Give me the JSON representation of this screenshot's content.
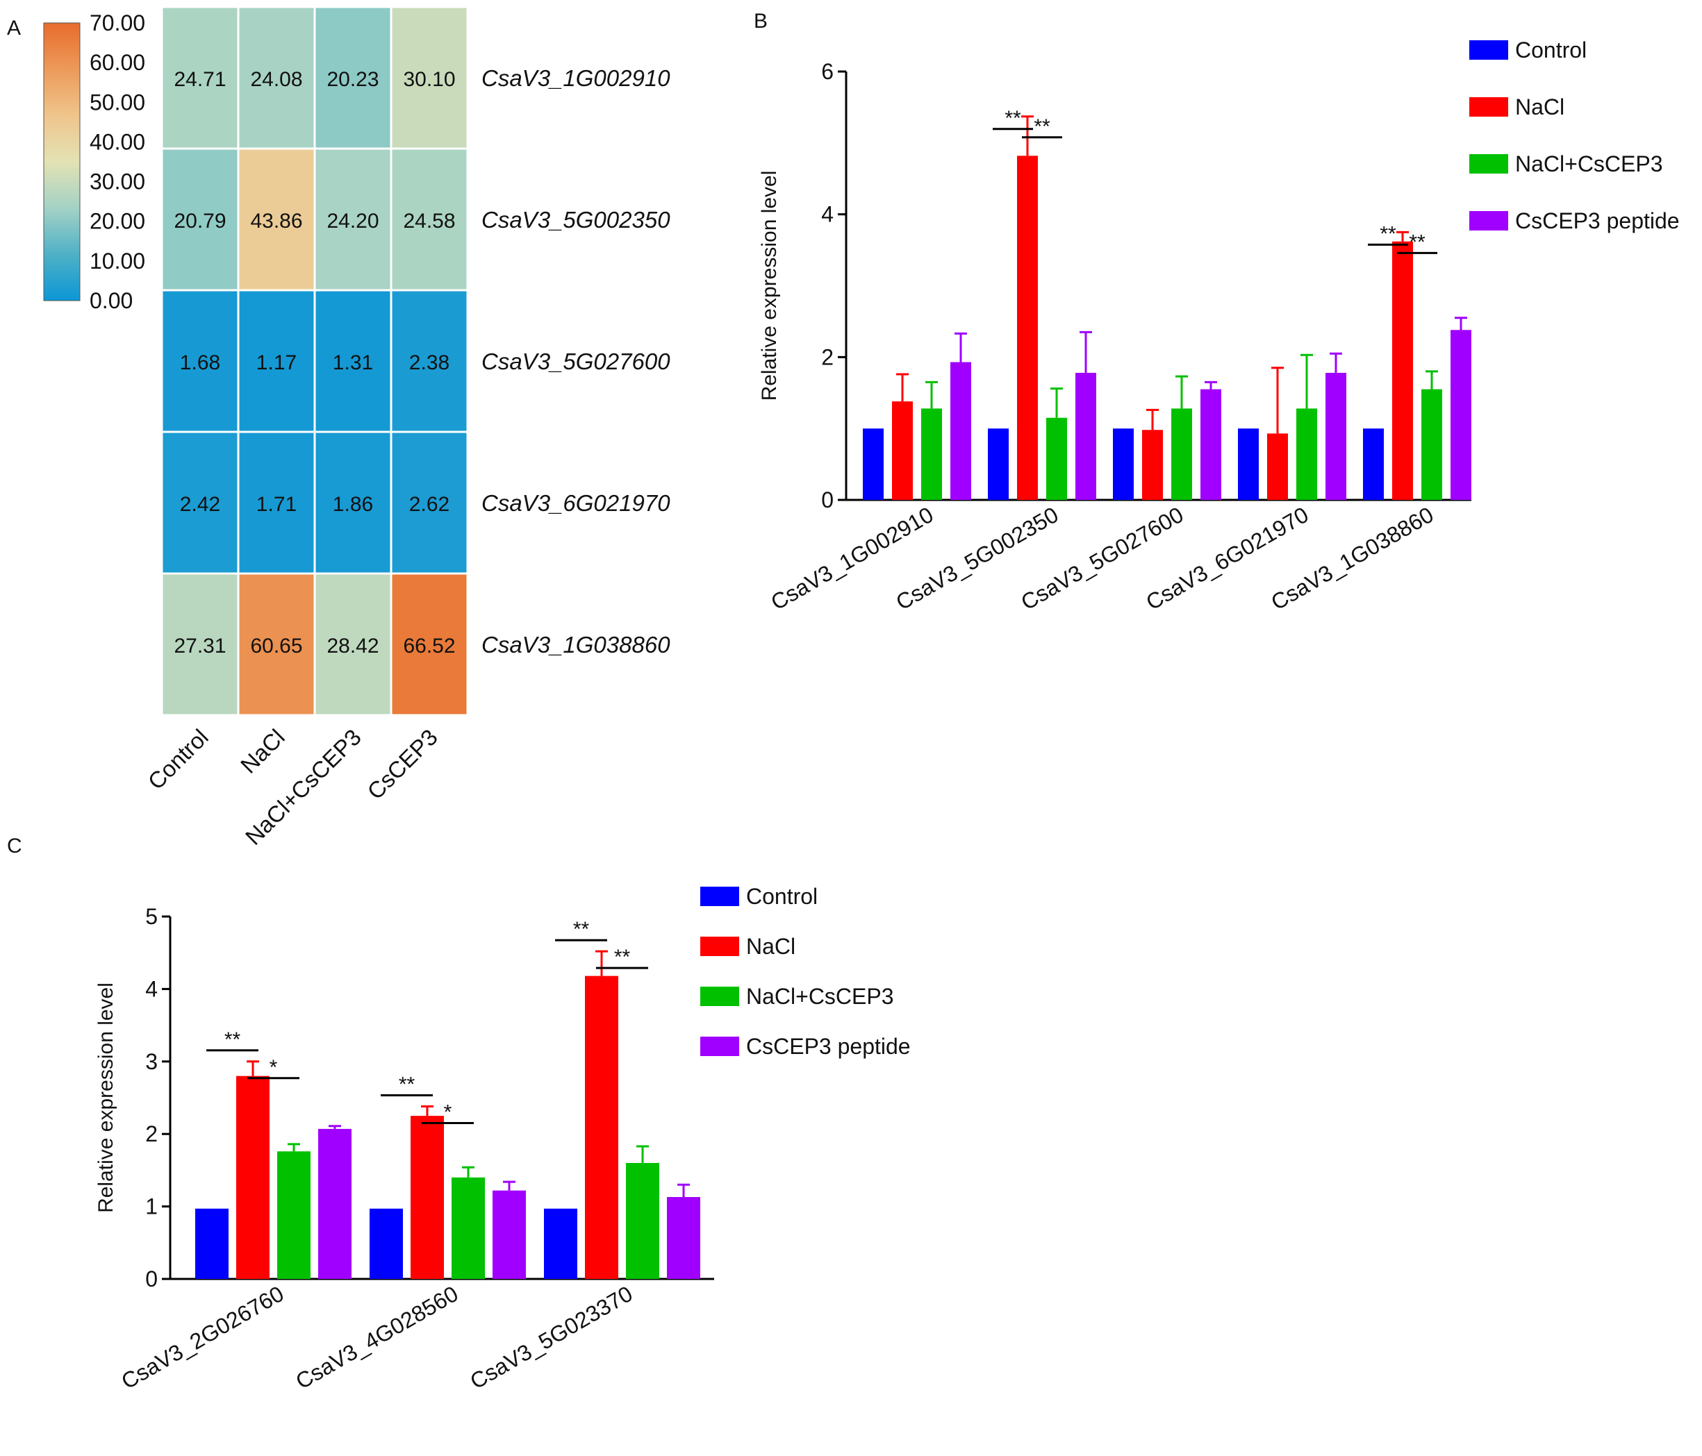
{
  "chart_data": [
    {
      "panel": "A",
      "type": "heatmap",
      "panel_label": "A",
      "columns": [
        "Control",
        "NaCl",
        "NaCl+CsCEP3",
        "CsCEP3"
      ],
      "rows": [
        "CsaV3_1G002910",
        "CsaV3_5G002350",
        "CsaV3_5G027600",
        "CsaV3_6G021970",
        "CsaV3_1G038860"
      ],
      "values": [
        [
          24.71,
          24.08,
          20.23,
          30.1
        ],
        [
          20.79,
          43.86,
          24.2,
          24.58
        ],
        [
          1.68,
          1.17,
          1.31,
          2.38
        ],
        [
          2.42,
          1.71,
          1.86,
          2.62
        ],
        [
          27.31,
          60.65,
          28.42,
          66.52
        ]
      ],
      "cell_labels": [
        [
          "24.71",
          "24.08",
          "20.23",
          "30.10"
        ],
        [
          "20.79",
          "43.86",
          "24.20",
          "24.58"
        ],
        [
          "1.68",
          "1.17",
          "1.31",
          "2.38"
        ],
        [
          "2.42",
          "1.71",
          "1.86",
          "2.62"
        ],
        [
          "27.31",
          "60.65",
          "28.42",
          "66.52"
        ]
      ],
      "colorbar": {
        "range": [
          0,
          70
        ],
        "ticks": [
          "70.00",
          "60.00",
          "50.00",
          "40.00",
          "30.00",
          "20.00",
          "10.00",
          "0.00"
        ],
        "colors": [
          "#0d96d6",
          "#4fb1c6",
          "#a4d2c5",
          "#e3e2b4",
          "#efc58c",
          "#ec9a5a",
          "#e86c2c"
        ]
      }
    },
    {
      "panel": "B",
      "type": "bar",
      "panel_label": "B",
      "categories": [
        "CsaV3_1G002910",
        "CsaV3_5G002350",
        "CsaV3_5G027600",
        "CsaV3_6G021970",
        "CsaV3_1G038860"
      ],
      "series": [
        {
          "name": "Control",
          "color": "#0000ff",
          "values": [
            1.0,
            1.0,
            1.0,
            1.0,
            1.0
          ],
          "errors": [
            0,
            0,
            0,
            0,
            0
          ]
        },
        {
          "name": "NaCl",
          "color": "#ff0000",
          "values": [
            1.38,
            4.82,
            0.98,
            0.93,
            3.62
          ],
          "errors": [
            0.38,
            0.55,
            0.28,
            0.92,
            0.13
          ]
        },
        {
          "name": "NaCl+CsCEP3",
          "color": "#00c000",
          "values": [
            1.28,
            1.15,
            1.28,
            1.28,
            1.55
          ],
          "errors": [
            0.37,
            0.41,
            0.45,
            0.75,
            0.25
          ]
        },
        {
          "name": "CsCEP3 peptide",
          "color": "#a000ff",
          "values": [
            1.93,
            1.78,
            1.55,
            1.78,
            2.38
          ],
          "errors": [
            0.4,
            0.57,
            0.1,
            0.27,
            0.17
          ]
        }
      ],
      "ylabel": "Relative expression level",
      "ylim": [
        0,
        6
      ],
      "yticks": [
        "0",
        "2",
        "4",
        "6"
      ],
      "significance": [
        {
          "category_index": 1,
          "from": 0,
          "to": 1,
          "label": "**"
        },
        {
          "category_index": 1,
          "from": 1,
          "to": 2,
          "label": "**"
        },
        {
          "category_index": 4,
          "from": 0,
          "to": 1,
          "label": "**"
        },
        {
          "category_index": 4,
          "from": 1,
          "to": 2,
          "label": "**"
        }
      ],
      "legend": [
        "Control",
        "NaCl",
        "NaCl+CsCEP3",
        "CsCEP3 peptide"
      ]
    },
    {
      "panel": "C",
      "type": "bar",
      "panel_label": "C",
      "categories": [
        "CsaV3_2G026760",
        "CsaV3_4G028560",
        "CsaV3_5G023370"
      ],
      "series": [
        {
          "name": "Control",
          "color": "#0000ff",
          "values": [
            0.97,
            0.97,
            0.97
          ],
          "errors": [
            0,
            0,
            0
          ]
        },
        {
          "name": "NaCl",
          "color": "#ff0000",
          "values": [
            2.8,
            2.25,
            4.18
          ],
          "errors": [
            0.2,
            0.13,
            0.34
          ]
        },
        {
          "name": "NaCl+CsCEP3",
          "color": "#00c000",
          "values": [
            1.76,
            1.4,
            1.6
          ],
          "errors": [
            0.1,
            0.14,
            0.23
          ]
        },
        {
          "name": "CsCEP3 peptide",
          "color": "#a000ff",
          "values": [
            2.07,
            1.22,
            1.13
          ],
          "errors": [
            0.04,
            0.12,
            0.17
          ]
        }
      ],
      "ylabel": "Relative expression level",
      "ylim": [
        0,
        5
      ],
      "yticks": [
        "0",
        "1",
        "2",
        "3",
        "4",
        "5"
      ],
      "significance": [
        {
          "category_index": 0,
          "from": 0,
          "to": 1,
          "label": "**"
        },
        {
          "category_index": 0,
          "from": 1,
          "to": 2,
          "label": "*"
        },
        {
          "category_index": 1,
          "from": 0,
          "to": 1,
          "label": "**"
        },
        {
          "category_index": 1,
          "from": 1,
          "to": 2,
          "label": "*"
        },
        {
          "category_index": 2,
          "from": 0,
          "to": 1,
          "label": "**"
        },
        {
          "category_index": 2,
          "from": 1,
          "to": 2,
          "label": "**"
        }
      ],
      "legend": [
        "Control",
        "NaCl",
        "NaCl+CsCEP3",
        "CsCEP3 peptide"
      ]
    }
  ]
}
